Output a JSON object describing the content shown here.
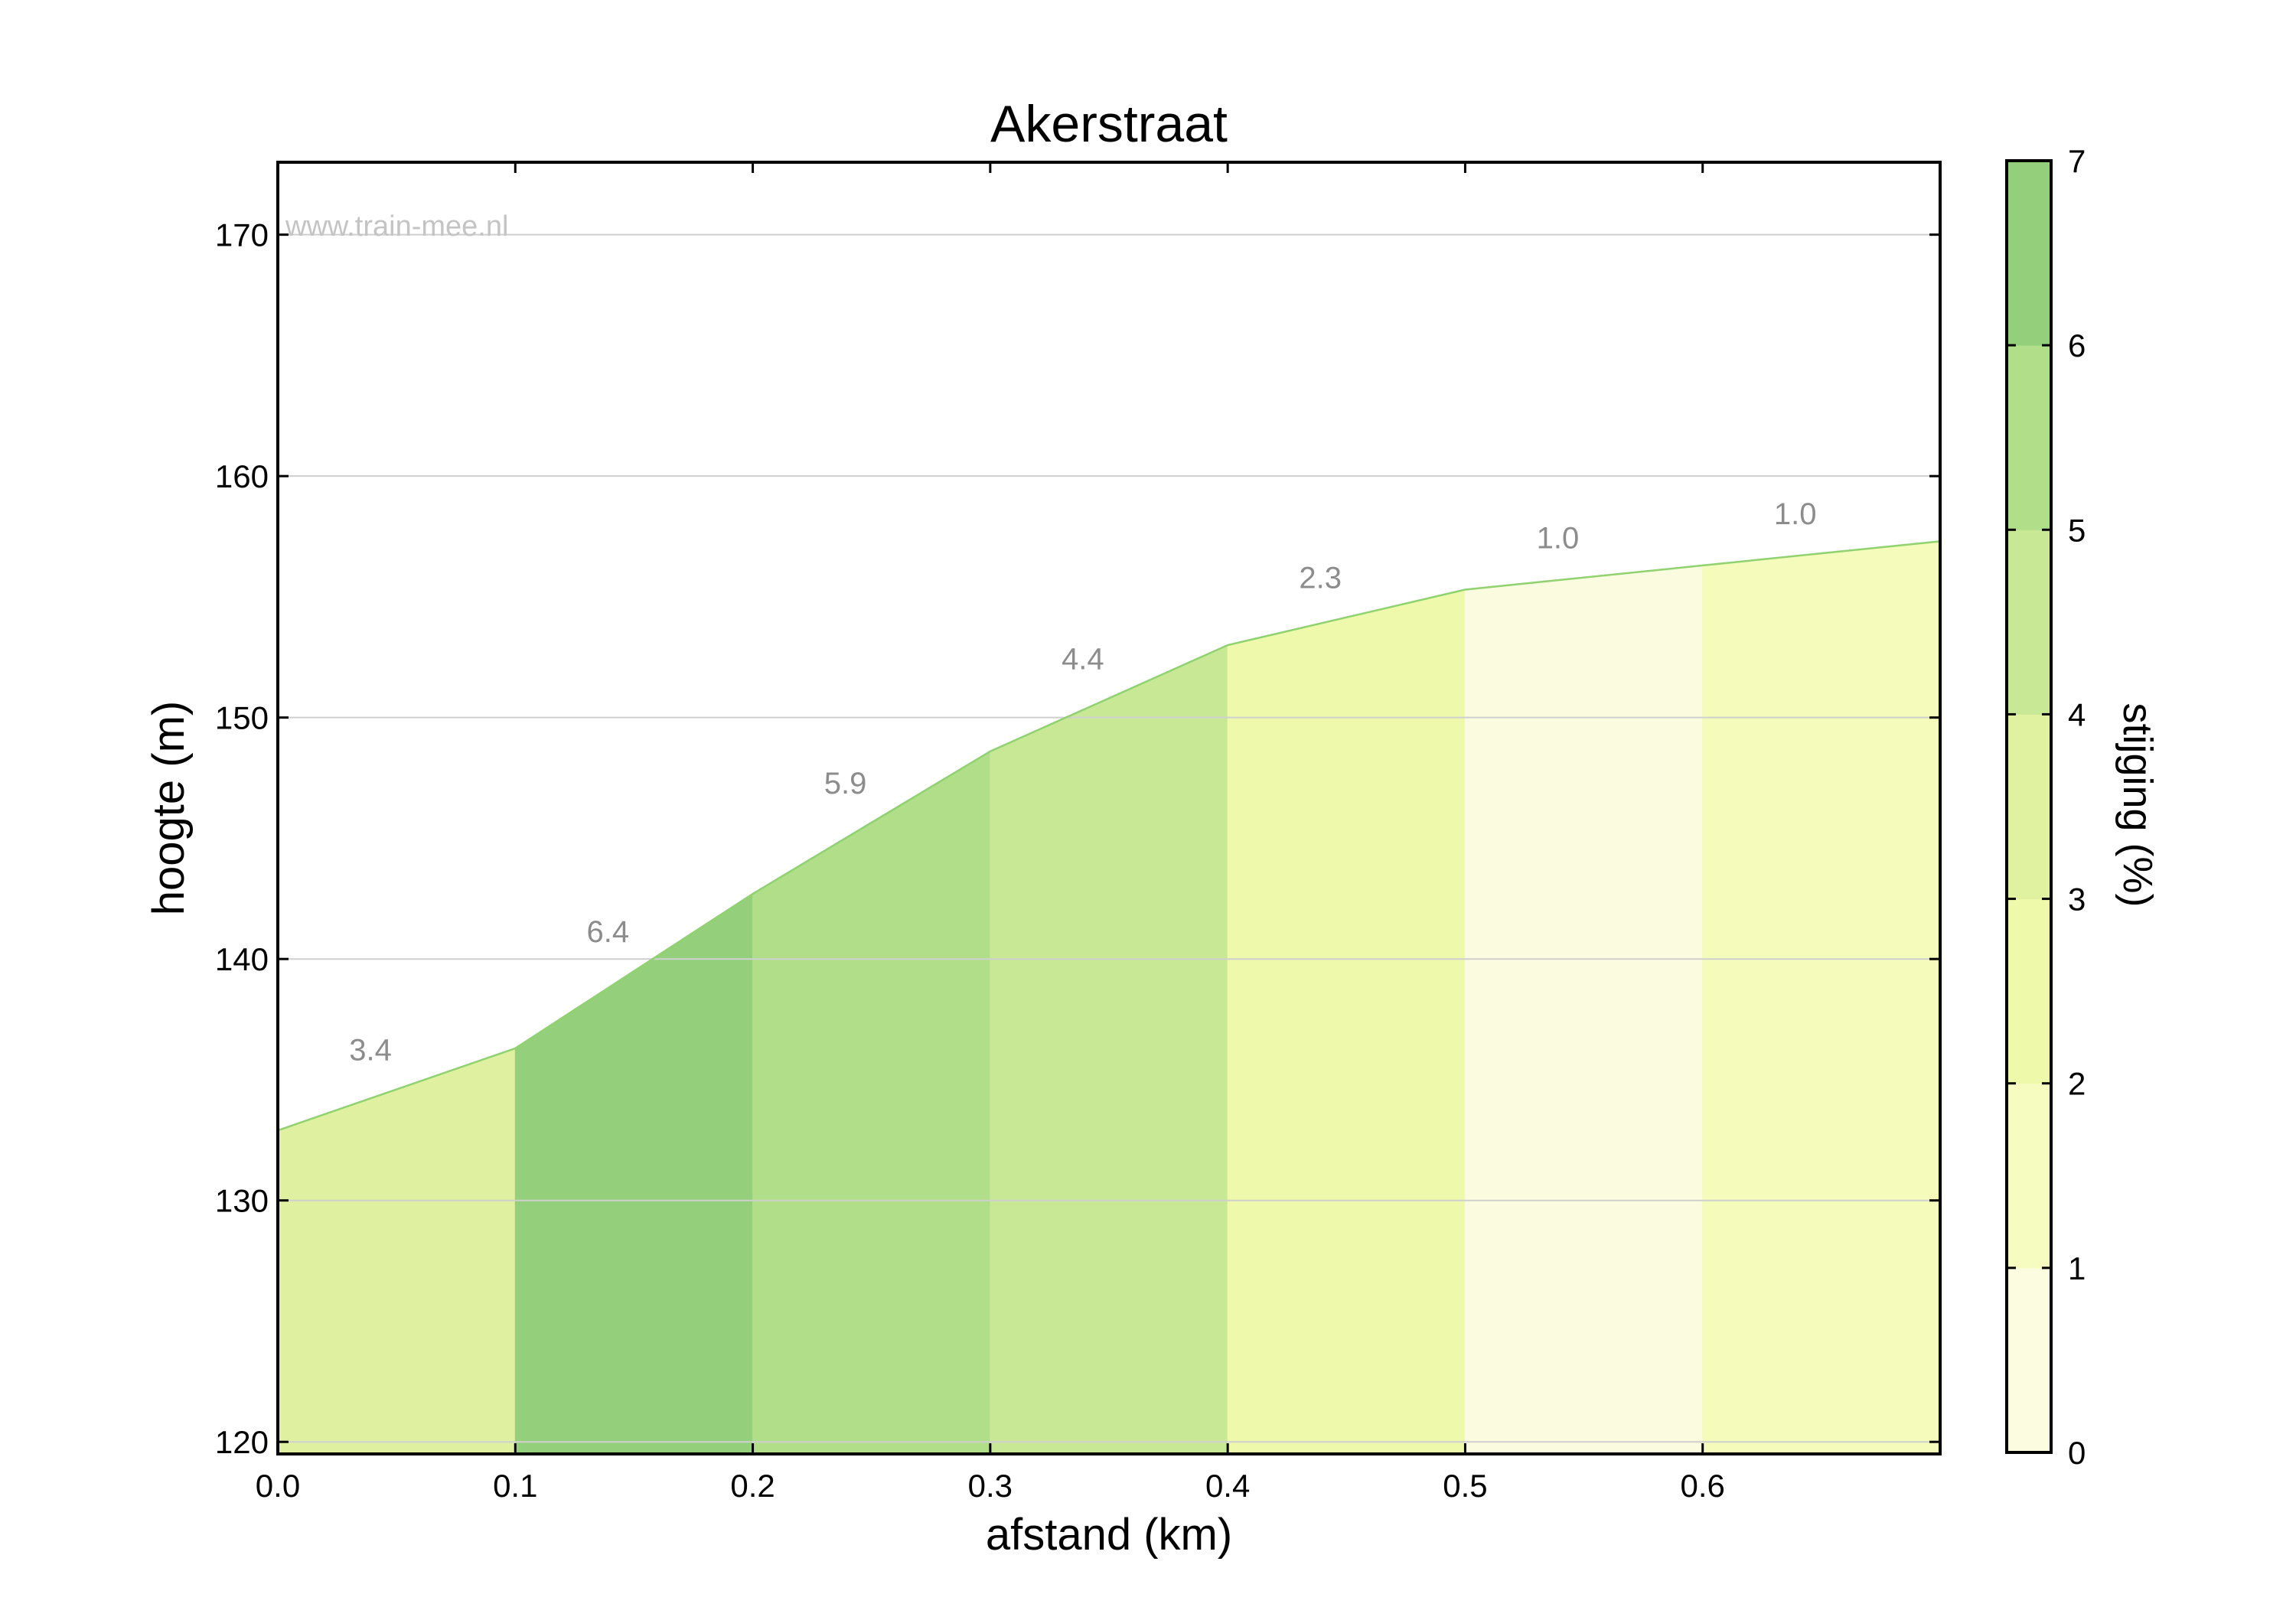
{
  "chart_data": {
    "type": "area",
    "title": "Akerstraat",
    "watermark": "www.train-mee.nl",
    "xlabel": "afstand (km)",
    "ylabel": "hoogte (m)",
    "xlim": [
      0.0,
      0.7
    ],
    "ylim": [
      119.5,
      173.0
    ],
    "x_ticks": [
      "0.0",
      "0.1",
      "0.2",
      "0.3",
      "0.4",
      "0.5",
      "0.6"
    ],
    "x_tick_values": [
      0.0,
      0.1,
      0.2,
      0.3,
      0.4,
      0.5,
      0.6
    ],
    "y_ticks": [
      "120",
      "130",
      "140",
      "150",
      "160",
      "170"
    ],
    "y_tick_values": [
      120,
      130,
      140,
      150,
      160,
      170
    ],
    "grid": "horizontal",
    "profile": {
      "x": [
        0.0,
        0.1,
        0.2,
        0.3,
        0.4,
        0.5,
        0.6,
        0.7
      ],
      "y": [
        132.9,
        136.3,
        142.7,
        148.6,
        153.0,
        155.3,
        156.3,
        157.3
      ]
    },
    "segments": [
      {
        "label": "3.4",
        "grade": 3.4,
        "x0": 0.0,
        "x1": 0.1,
        "color": "#dff0a0"
      },
      {
        "label": "6.4",
        "grade": 6.4,
        "x0": 0.1,
        "x1": 0.2,
        "color": "#94d07b"
      },
      {
        "label": "5.9",
        "grade": 5.9,
        "x0": 0.2,
        "x1": 0.3,
        "color": "#b1de88"
      },
      {
        "label": "4.4",
        "grade": 4.4,
        "x0": 0.3,
        "x1": 0.4,
        "color": "#c9e896"
      },
      {
        "label": "2.3",
        "grade": 2.3,
        "x0": 0.4,
        "x1": 0.5,
        "color": "#eef9ab"
      },
      {
        "label": "1.0",
        "grade": 1.0,
        "x0": 0.5,
        "x1": 0.6,
        "color": "#fbfbdf"
      },
      {
        "label": "1.0",
        "grade": 1.0,
        "x0": 0.6,
        "x1": 0.7,
        "color": "#f5fbbb"
      }
    ],
    "outline_color": "#8fd26f",
    "colorbar": {
      "label": "stijging (%)",
      "ticks": [
        "0",
        "1",
        "2",
        "3",
        "4",
        "5",
        "6",
        "7"
      ],
      "range": [
        0,
        7
      ],
      "colors": [
        "#fcfce0",
        "#f6fcc0",
        "#eef9aa",
        "#e0f2a0",
        "#c9e896",
        "#b1de88",
        "#94d07b"
      ]
    }
  }
}
